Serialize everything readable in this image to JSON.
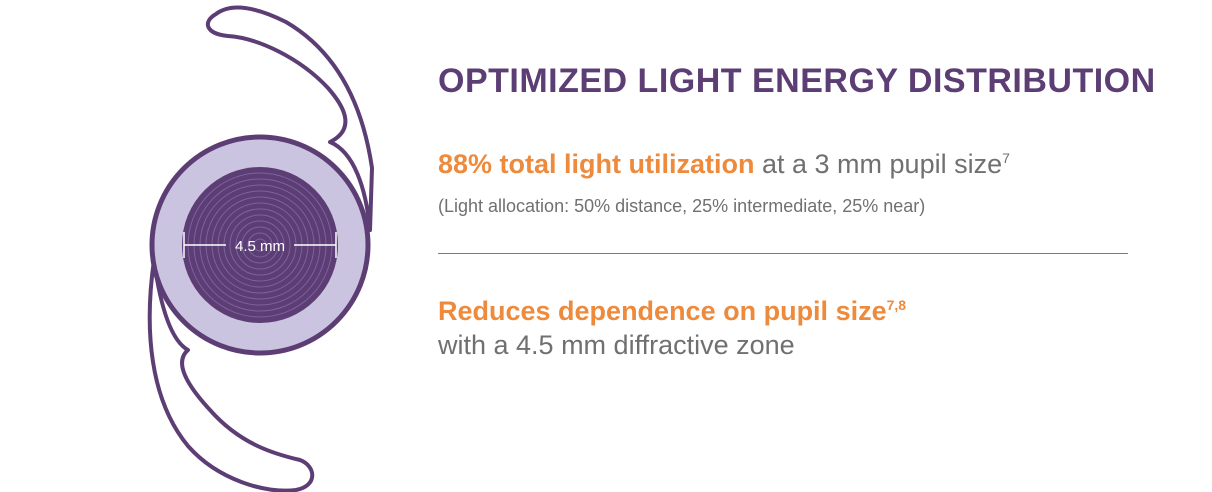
{
  "diagram": {
    "zone_label": "4.5 mm"
  },
  "headline": "OPTIMIZED LIGHT ENERGY DISTRIBUTION",
  "stat1": {
    "highlight": "88% total light utilization",
    "text": " at a 3 mm pupil size",
    "sup": "7"
  },
  "note": "(Light allocation: 50% distance, 25% intermediate, 25% near)",
  "stat2": {
    "highlight": "Reduces dependence on pupil size",
    "sup": "7,8",
    "text": "with a 4.5 mm diffractive zone"
  },
  "colors": {
    "purple": "#5c3e74",
    "orange": "#ee8a3c",
    "lavender": "#cbc4e0",
    "gray": "#707070"
  }
}
